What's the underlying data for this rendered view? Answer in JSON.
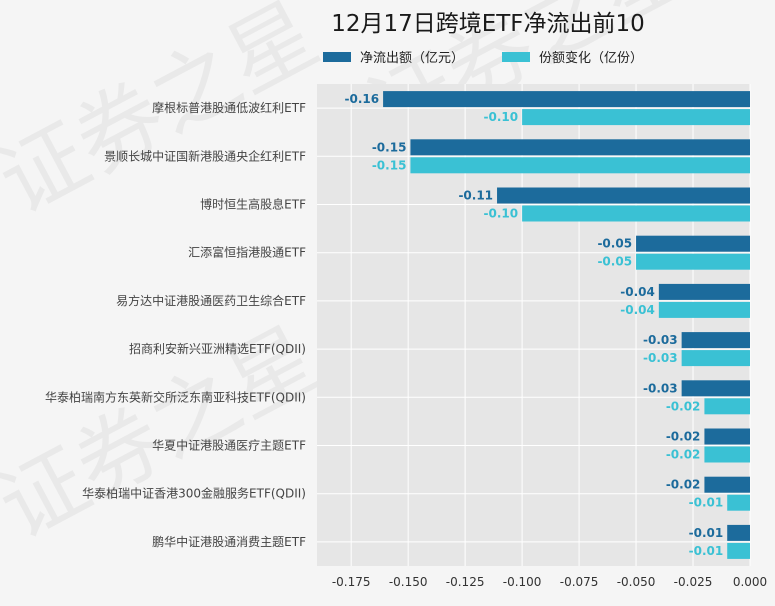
{
  "chart_data": {
    "type": "bar",
    "orientation": "horizontal",
    "title": "12月17日跨境ETF净流出前10",
    "categories": [
      "摩根标普港股通低波红利ETF",
      "景顺长城中证国新港股通央企红利ETF",
      "博时恒生高股息ETF",
      "汇添富恒指港股通ETF",
      "易方达中证港股通医药卫生综合ETF",
      "招商利安新兴亚洲精选ETF(QDII)",
      "华泰柏瑞南方东英新交所泛东南亚科技ETF(QDII)",
      "华夏中证港股通医疗主题ETF",
      "华泰柏瑞中证香港300金融服务ETF(QDII)",
      "鹏华中证港股通消费主题ETF"
    ],
    "series": [
      {
        "name": "净流出额（亿元）",
        "color": "#1c6b9c",
        "values": [
          -0.161,
          -0.149,
          -0.111,
          -0.05,
          -0.04,
          -0.03,
          -0.03,
          -0.02,
          -0.02,
          -0.01
        ],
        "labels": [
          "-0.16",
          "-0.15",
          "-0.11",
          "-0.05",
          "-0.04",
          "-0.03",
          "-0.03",
          "-0.02",
          "-0.02",
          "-0.01"
        ]
      },
      {
        "name": "份额变化（亿份）",
        "color": "#3ac1d4",
        "values": [
          -0.1,
          -0.149,
          -0.1,
          -0.05,
          -0.04,
          -0.03,
          -0.02,
          -0.02,
          -0.01,
          -0.01
        ],
        "labels": [
          "-0.10",
          "-0.15",
          "-0.10",
          "-0.05",
          "-0.04",
          "-0.03",
          "-0.02",
          "-0.02",
          "-0.01",
          "-0.01"
        ]
      }
    ],
    "xlim": [
      -0.19,
      0.0
    ],
    "xticks": [
      -0.175,
      -0.15,
      -0.125,
      -0.1,
      -0.075,
      -0.05,
      -0.025,
      0.0
    ],
    "xtick_labels": [
      "-0.175",
      "-0.150",
      "-0.125",
      "-0.100",
      "-0.075",
      "-0.050",
      "-0.025",
      "0.000"
    ],
    "grid": true,
    "legend_position": "top-center",
    "plot_background": "#e6e6e6",
    "grid_color": "#ffffff",
    "watermark": "证券之星"
  }
}
